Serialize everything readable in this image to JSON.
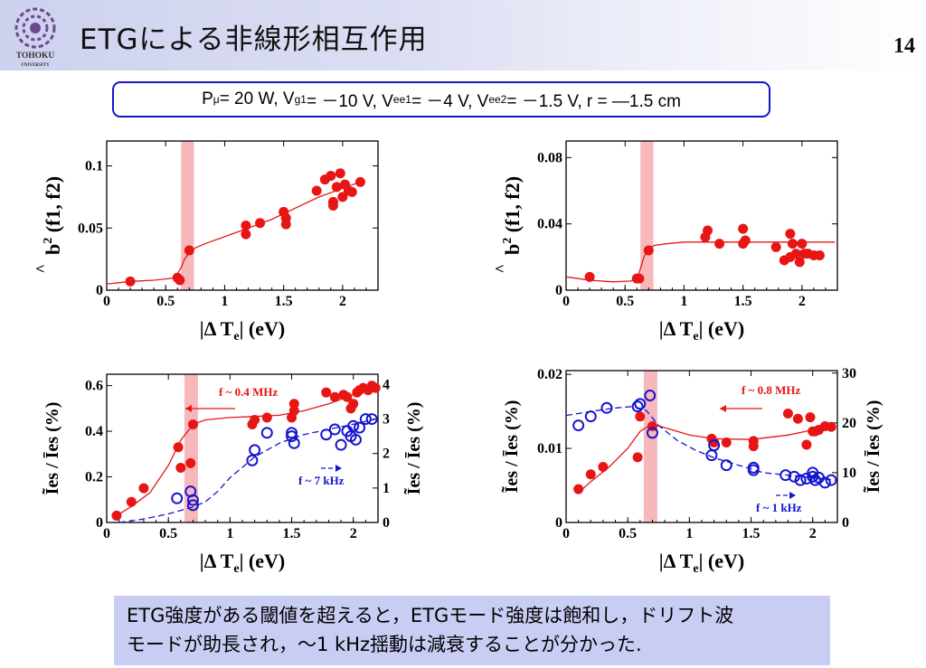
{
  "header": {
    "title": "ETGによる非線形相互作用",
    "page_number": "14",
    "logo_text_1": "TOHOKU",
    "logo_text_2": "UNIVERSITY"
  },
  "params": {
    "p_label": "P",
    "p_sub": "μ",
    "p_val": "= 20 W, V",
    "vg_sub": "g1",
    "vg_val": " = －10 V, V",
    "vee1_sub": "ee1",
    "vee1_val": " = －4 V, V",
    "vee2_sub": "ee2",
    "vee2_val": " = －1.5 V, r = ―1.5 cm"
  },
  "summary": {
    "line1": "ETG強度がある閾値を超えると，ETGモード強度は飽和し，ドリフト波",
    "line2": "モードが助長され，～1 kHz揺動は減衰することが分かった."
  },
  "colors": {
    "red": "#e81515",
    "blue": "#1515d0",
    "band": "#f7b8bb"
  },
  "chart_data": [
    {
      "type": "scatter",
      "xlabel": "|Δ T|",
      "xlabel_sub": "e",
      "xlabel_unit": " (eV)",
      "ylabel": "b",
      "ylabel_pre": "^",
      "ylabel_sup": "2",
      "ylabel_rest": " (f1, f2)",
      "xlim": [
        0,
        2.3
      ],
      "ylim": [
        0,
        0.12
      ],
      "xticks": [
        0,
        0.5,
        1,
        1.5,
        2
      ],
      "xtick_labels": [
        "0",
        "0.5",
        "1",
        "1.5",
        "2"
      ],
      "yticks": [
        0,
        0.05,
        0.1
      ],
      "ytick_labels": [
        "0",
        "0.05",
        "0.1"
      ],
      "highlight_band": [
        0.63,
        0.74
      ],
      "series": [
        {
          "color": "red",
          "marker": "filled",
          "x": [
            0.2,
            0.6,
            0.62,
            0.7,
            1.18,
            1.18,
            1.3,
            1.5,
            1.52,
            1.52,
            1.78,
            1.85,
            1.9,
            1.95,
            1.98,
            2.0,
            2.02,
            2.05,
            2.08,
            1.92,
            1.92,
            2.15
          ],
          "y": [
            0.007,
            0.01,
            0.008,
            0.032,
            0.052,
            0.045,
            0.054,
            0.063,
            0.058,
            0.053,
            0.08,
            0.089,
            0.092,
            0.083,
            0.094,
            0.075,
            0.085,
            0.08,
            0.079,
            0.071,
            0.068,
            0.087
          ],
          "fit_x": [
            0,
            0.1,
            0.2,
            0.3,
            0.4,
            0.5,
            0.58,
            0.63,
            0.66,
            0.7,
            0.75,
            0.85,
            1.0,
            1.2,
            1.4,
            1.6,
            1.8,
            2.0,
            2.15
          ],
          "fit_y": [
            0.005,
            0.006,
            0.007,
            0.0075,
            0.008,
            0.009,
            0.01,
            0.018,
            0.025,
            0.03,
            0.034,
            0.038,
            0.043,
            0.05,
            0.057,
            0.066,
            0.075,
            0.082,
            0.087
          ]
        }
      ]
    },
    {
      "type": "scatter",
      "xlabel": "|Δ T|",
      "xlabel_sub": "e",
      "xlabel_unit": " (eV)",
      "ylabel": "b",
      "ylabel_pre": "^",
      "ylabel_sup": "2",
      "ylabel_rest": " (f1, f2)",
      "xlim": [
        0,
        2.3
      ],
      "ylim": [
        0,
        0.09
      ],
      "xticks": [
        0,
        0.5,
        1,
        1.5,
        2
      ],
      "xtick_labels": [
        "0",
        "0.5",
        "1",
        "1.5",
        "2"
      ],
      "yticks": [
        0,
        0.04,
        0.08
      ],
      "ytick_labels": [
        "0",
        "0.04",
        "0.08"
      ],
      "highlight_band": [
        0.63,
        0.74
      ],
      "series": [
        {
          "color": "red",
          "marker": "filled",
          "x": [
            0.2,
            0.6,
            0.62,
            0.7,
            1.18,
            1.2,
            1.3,
            1.5,
            1.52,
            1.5,
            1.78,
            1.85,
            1.9,
            1.92,
            1.95,
            1.98,
            2.0,
            2.02,
            2.05,
            2.1,
            2.15,
            1.9
          ],
          "y": [
            0.008,
            0.007,
            0.007,
            0.024,
            0.032,
            0.036,
            0.028,
            0.037,
            0.03,
            0.028,
            0.026,
            0.018,
            0.02,
            0.028,
            0.022,
            0.017,
            0.028,
            0.022,
            0.022,
            0.021,
            0.021,
            0.034
          ],
          "fit_x": [
            0,
            0.2,
            0.4,
            0.55,
            0.6,
            0.63,
            0.66,
            0.7,
            0.75,
            0.85,
            1.0,
            1.3,
            1.6,
            2.0,
            2.28
          ],
          "fit_y": [
            0.008,
            0.006,
            0.005,
            0.0055,
            0.007,
            0.013,
            0.02,
            0.025,
            0.027,
            0.028,
            0.029,
            0.029,
            0.029,
            0.029,
            0.029
          ]
        }
      ]
    },
    {
      "type": "scatter",
      "xlabel": "|Δ T|",
      "xlabel_sub": "e",
      "xlabel_unit": " (eV)",
      "ylabel": "Ĩ / Ī",
      "ylabel_left": "Ĩes / Īes  (%)",
      "ylabel_right": "Ĩes / Īes  (%)",
      "xlim": [
        0,
        2.2
      ],
      "ylim": [
        0,
        0.65
      ],
      "y2lim": [
        0,
        4.3
      ],
      "xticks": [
        0,
        0.5,
        1,
        1.5,
        2
      ],
      "xtick_labels": [
        "0",
        "0.5",
        "1",
        "1.5",
        "2"
      ],
      "yticks": [
        0,
        0.2,
        0.4,
        0.6
      ],
      "ytick_labels": [
        "0",
        "0.2",
        "0.4",
        "0.6"
      ],
      "y2ticks": [
        0,
        1,
        2,
        3,
        4
      ],
      "y2tick_labels": [
        "0",
        "1",
        "2",
        "3",
        "4"
      ],
      "highlight_band": [
        0.63,
        0.74
      ],
      "annotations": [
        {
          "text": "f ~ 0.4 MHz",
          "color": "red"
        },
        {
          "text": "f ~ 7 kHz",
          "color": "blue"
        }
      ],
      "series": [
        {
          "color": "red",
          "marker": "filled",
          "axis": "left",
          "x": [
            0.08,
            0.2,
            0.3,
            0.58,
            0.6,
            0.68,
            0.7,
            1.18,
            1.2,
            1.3,
            1.5,
            1.52,
            1.52,
            1.78,
            1.85,
            1.92,
            1.95,
            2.0,
            2.03,
            2.05,
            2.08,
            2.12,
            2.15,
            2.18,
            1.98
          ],
          "y": [
            0.03,
            0.09,
            0.15,
            0.33,
            0.24,
            0.26,
            0.43,
            0.43,
            0.45,
            0.46,
            0.46,
            0.49,
            0.52,
            0.57,
            0.55,
            0.56,
            0.55,
            0.52,
            0.57,
            0.58,
            0.59,
            0.58,
            0.6,
            0.59,
            0.5
          ],
          "fit_x": [
            0.08,
            0.2,
            0.35,
            0.5,
            0.6,
            0.7,
            0.8,
            1.0,
            1.2,
            1.4,
            1.6,
            1.8,
            2.0,
            2.18
          ],
          "fit_y": [
            0.03,
            0.07,
            0.13,
            0.25,
            0.36,
            0.43,
            0.45,
            0.46,
            0.465,
            0.47,
            0.49,
            0.52,
            0.56,
            0.59
          ]
        },
        {
          "color": "blue",
          "marker": "open",
          "axis": "right",
          "x": [
            0.57,
            0.68,
            0.7,
            0.7,
            1.18,
            1.2,
            1.3,
            1.5,
            1.5,
            1.52,
            1.78,
            1.85,
            1.9,
            1.95,
            1.98,
            2.0,
            2.02,
            2.05,
            2.1,
            2.15
          ],
          "y": [
            0.7,
            0.9,
            0.5,
            0.65,
            1.8,
            2.1,
            2.6,
            2.6,
            2.5,
            2.3,
            2.55,
            2.7,
            2.25,
            2.65,
            2.5,
            2.8,
            2.4,
            2.75,
            3.0,
            3.0
          ],
          "fit_x": [
            0.1,
            0.3,
            0.5,
            0.6,
            0.7,
            0.8,
            0.9,
            1.0,
            1.1,
            1.2,
            1.4,
            1.6,
            1.8,
            2.0,
            2.18
          ],
          "fit_y": [
            0.0,
            0.1,
            0.25,
            0.35,
            0.45,
            0.6,
            0.9,
            1.3,
            1.6,
            1.9,
            2.3,
            2.55,
            2.7,
            2.85,
            3.0
          ]
        }
      ]
    },
    {
      "type": "scatter",
      "xlabel": "|Δ T|",
      "xlabel_sub": "e",
      "xlabel_unit": " (eV)",
      "ylabel_left": "Ĩes / Īes  (%)",
      "ylabel_right": "Ĩes / Īes  (%)",
      "xlim": [
        0,
        2.2
      ],
      "ylim": [
        0,
        0.0205
      ],
      "y2lim": [
        0,
        30.5
      ],
      "xticks": [
        0,
        0.5,
        1,
        1.5,
        2
      ],
      "xtick_labels": [
        "0",
        "0.5",
        "1",
        "1.5",
        "2"
      ],
      "yticks": [
        0,
        0.01,
        0.02
      ],
      "ytick_labels": [
        "0",
        "0.01",
        "0.02"
      ],
      "y2ticks": [
        0,
        10,
        20,
        30
      ],
      "y2tick_labels": [
        "0",
        "10",
        "20",
        "30"
      ],
      "highlight_band": [
        0.63,
        0.74
      ],
      "annotations": [
        {
          "text": "f ~ 0.8 MHz",
          "color": "red"
        },
        {
          "text": "f ~ 1 kHz",
          "color": "blue"
        }
      ],
      "series": [
        {
          "color": "red",
          "marker": "filled",
          "axis": "left",
          "x": [
            0.1,
            0.2,
            0.3,
            0.58,
            0.6,
            0.7,
            1.18,
            1.2,
            1.3,
            1.52,
            1.52,
            1.8,
            1.88,
            1.95,
            1.98,
            2.0,
            2.02,
            2.05,
            2.1,
            2.15
          ],
          "y": [
            0.0045,
            0.0065,
            0.0075,
            0.0088,
            0.0143,
            0.013,
            0.0113,
            0.0108,
            0.0108,
            0.011,
            0.0103,
            0.0147,
            0.014,
            0.0105,
            0.0142,
            0.0123,
            0.0123,
            0.0125,
            0.013,
            0.0129
          ],
          "fit_x": [
            0.1,
            0.2,
            0.35,
            0.5,
            0.6,
            0.7,
            0.8,
            1.0,
            1.2,
            1.5,
            1.8,
            2.0,
            2.18
          ],
          "fit_y": [
            0.004,
            0.0055,
            0.0075,
            0.01,
            0.0123,
            0.0133,
            0.0128,
            0.0118,
            0.0113,
            0.0112,
            0.0118,
            0.0125,
            0.013
          ]
        },
        {
          "color": "blue",
          "marker": "open",
          "axis": "right",
          "x": [
            0.1,
            0.2,
            0.33,
            0.58,
            0.6,
            0.68,
            0.7,
            1.18,
            1.2,
            1.3,
            1.52,
            1.52,
            1.78,
            1.85,
            1.9,
            1.95,
            2.0,
            2.0,
            2.02,
            2.05,
            2.1,
            2.15
          ],
          "y": [
            19.5,
            21.3,
            23.0,
            23.3,
            23.8,
            25.5,
            18.0,
            13.5,
            15.5,
            11.5,
            10.5,
            11.0,
            9.5,
            9.2,
            8.5,
            8.8,
            10.0,
            9.2,
            8.5,
            9.0,
            8.0,
            8.5
          ],
          "fit_x": [
            0.0,
            0.2,
            0.4,
            0.55,
            0.65,
            0.75,
            0.9,
            1.05,
            1.2,
            1.4,
            1.6,
            1.8,
            2.0,
            2.18
          ],
          "fit_y": [
            21.5,
            22.3,
            23.0,
            23.3,
            22.5,
            19.5,
            16.5,
            14.5,
            13.0,
            11.5,
            10.0,
            9.5,
            9.0,
            8.5
          ]
        }
      ]
    }
  ]
}
